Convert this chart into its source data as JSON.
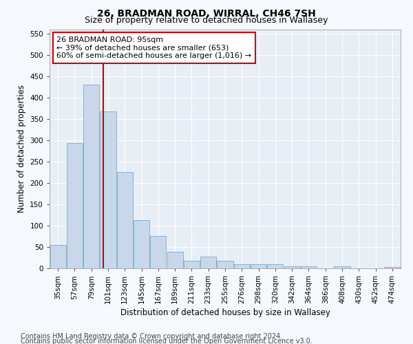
{
  "title": "26, BRADMAN ROAD, WIRRAL, CH46 7SH",
  "subtitle": "Size of property relative to detached houses in Wallasey",
  "xlabel": "Distribution of detached houses by size in Wallasey",
  "ylabel": "Number of detached properties",
  "categories": [
    "35sqm",
    "57sqm",
    "79sqm",
    "101sqm",
    "123sqm",
    "145sqm",
    "167sqm",
    "189sqm",
    "211sqm",
    "233sqm",
    "255sqm",
    "276sqm",
    "298sqm",
    "320sqm",
    "342sqm",
    "364sqm",
    "386sqm",
    "408sqm",
    "430sqm",
    "452sqm",
    "474sqm"
  ],
  "values": [
    55,
    293,
    430,
    368,
    225,
    113,
    75,
    38,
    18,
    28,
    18,
    9,
    9,
    9,
    5,
    5,
    0,
    5,
    0,
    0,
    3
  ],
  "bar_color": "#c8d8ea",
  "bar_edge_color": "#7aaac8",
  "bg_color": "#f5f8fc",
  "plot_bg_color": "#e8eef5",
  "grid_color": "#ffffff",
  "vline_color": "#cc0000",
  "vline_pos": 2.73,
  "annotation_text": "26 BRADMAN ROAD: 95sqm\n← 39% of detached houses are smaller (653)\n60% of semi-detached houses are larger (1,016) →",
  "annotation_box_color": "#ffffff",
  "annotation_box_edge": "#cc0000",
  "ylim": [
    0,
    560
  ],
  "yticks": [
    0,
    50,
    100,
    150,
    200,
    250,
    300,
    350,
    400,
    450,
    500,
    550
  ],
  "footer1": "Contains HM Land Registry data © Crown copyright and database right 2024.",
  "footer2": "Contains public sector information licensed under the Open Government Licence v3.0.",
  "title_fontsize": 10,
  "subtitle_fontsize": 9,
  "axis_label_fontsize": 8.5,
  "tick_fontsize": 7.5,
  "annotation_fontsize": 8,
  "footer_fontsize": 7
}
